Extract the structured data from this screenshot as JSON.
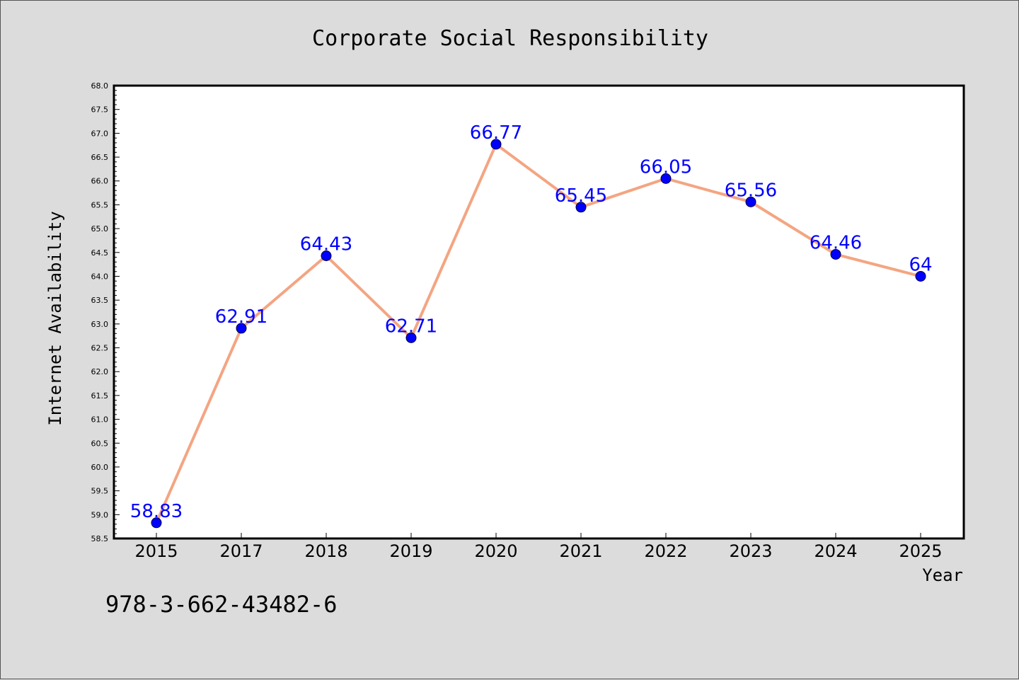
{
  "chart_data": {
    "type": "line",
    "title": "Corporate Social Responsibility",
    "xlabel": "Year",
    "ylabel": "Internet Availability",
    "categories": [
      "2015",
      "2017",
      "2018",
      "2019",
      "2020",
      "2021",
      "2022",
      "2023",
      "2024",
      "2025"
    ],
    "series": [
      {
        "values": [
          58.83,
          62.91,
          64.43,
          62.71,
          66.77,
          65.45,
          66.05,
          65.56,
          64.46,
          64
        ],
        "line_color": "#f4a582",
        "marker_color": "#0000ff"
      }
    ],
    "data_labels": [
      "58.83",
      "62.91",
      "64.43",
      "62.71",
      "66.77",
      "65.45",
      "66.05",
      "65.56",
      "64.46",
      "64"
    ],
    "ylim": [
      58.5,
      68.0
    ],
    "yticks": [
      "58.5",
      "59.0",
      "59.5",
      "60.0",
      "60.5",
      "61.0",
      "61.5",
      "62.0",
      "62.5",
      "63.0",
      "63.5",
      "64.0",
      "64.5",
      "65.0",
      "65.5",
      "66.0",
      "66.5",
      "67.0",
      "67.5",
      "68.0"
    ],
    "grid": false,
    "legend": "none"
  },
  "footer": {
    "isbn": "978-3-662-43482-6"
  },
  "colors": {
    "background": "#dcdcdc",
    "plot_background": "#ffffff",
    "label_color": "#0000ff"
  }
}
